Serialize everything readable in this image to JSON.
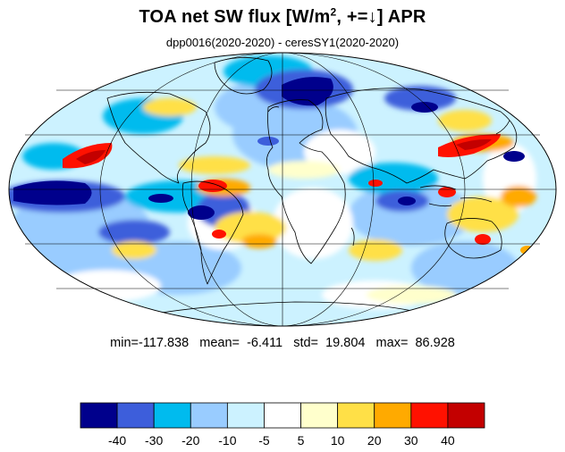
{
  "title": {
    "prefix": "TOA net SW flux [W/m",
    "superscript": "2",
    "suffix": ", +=↓]  APR"
  },
  "subtitle": "dpp0016(2020-2020) - ceresSY1(2020-2020)",
  "stats": {
    "min_label": "min=",
    "min": "-117.838",
    "mean_label": "mean=",
    "mean": "-6.411",
    "std_label": "std=",
    "std": "19.804",
    "max_label": "max=",
    "max": "86.928"
  },
  "colorbar": {
    "colors": [
      "#00008c",
      "#3d5edb",
      "#00bbee",
      "#99ccff",
      "#ccf2ff",
      "#ffffff",
      "#ffffcc",
      "#ffe047",
      "#ffaa00",
      "#ff1100",
      "#c30000"
    ],
    "labels": [
      "-40",
      "-30",
      "-20",
      "-10",
      "-5",
      "5",
      "10",
      "20",
      "30",
      "40"
    ]
  },
  "map": {
    "projection": "mollweide",
    "region_colors": {
      "strong_negative": "#00008c",
      "negative": "#3d5edb",
      "moderate_negative": "#00bbee",
      "weak_negative": "#99ccff",
      "slight_negative": "#ccf2ff",
      "slight_positive": "#ffffcc",
      "weak_positive": "#ffe047",
      "moderate_positive": "#ffaa00",
      "positive": "#ff1100",
      "strong_positive": "#c30000"
    }
  }
}
